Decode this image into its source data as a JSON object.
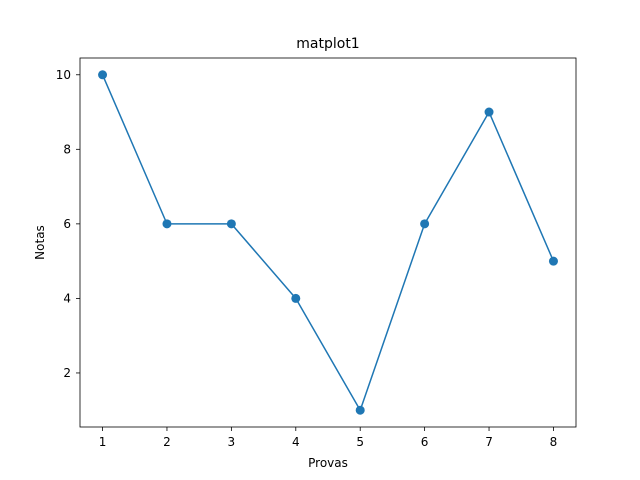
{
  "chart_data": {
    "type": "line",
    "title": "matplot1",
    "xlabel": "Provas",
    "ylabel": "Notas",
    "x": [
      1,
      2,
      3,
      4,
      5,
      6,
      7,
      8
    ],
    "series": [
      {
        "values": [
          10,
          6,
          6,
          4,
          1,
          6,
          9,
          5
        ],
        "color": "#1f77b4",
        "marker": "circle"
      }
    ],
    "x_ticks": [
      "1",
      "2",
      "3",
      "4",
      "5",
      "6",
      "7",
      "8"
    ],
    "y_ticks": [
      "2",
      "4",
      "6",
      "8",
      "10"
    ],
    "xlim": [
      0.65,
      8.35
    ],
    "ylim": [
      0.55,
      10.45
    ],
    "grid": false,
    "legend": "none"
  }
}
